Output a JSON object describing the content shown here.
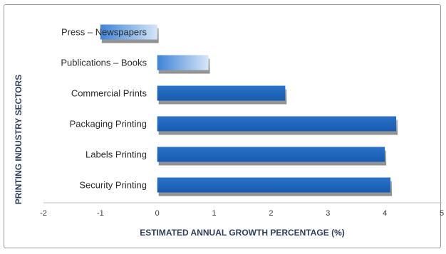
{
  "chart_data": {
    "type": "bar",
    "orientation": "horizontal",
    "categories": [
      "Press – Newspapers",
      "Publications – Books",
      "Commercial Prints",
      "Packaging Printing",
      "Labels Printing",
      "Security Printing"
    ],
    "values": [
      -1.0,
      0.9,
      2.25,
      4.2,
      4.0,
      4.1
    ],
    "xlabel": "ESTIMATED ANNUAL GROWTH PERCENTAGE (%)",
    "ylabel": "PRINTING INDUSTRY SECTORS",
    "xlim": [
      -2,
      5
    ],
    "xticks": [
      "-2",
      "-1",
      "0",
      "1",
      "2",
      "3",
      "4",
      "5"
    ],
    "grid": false,
    "legend": "none",
    "colors": {
      "bar_dark": "#1c63b9",
      "bar_light": "#c8dcf4",
      "shadow": "#a8a8a8"
    }
  }
}
